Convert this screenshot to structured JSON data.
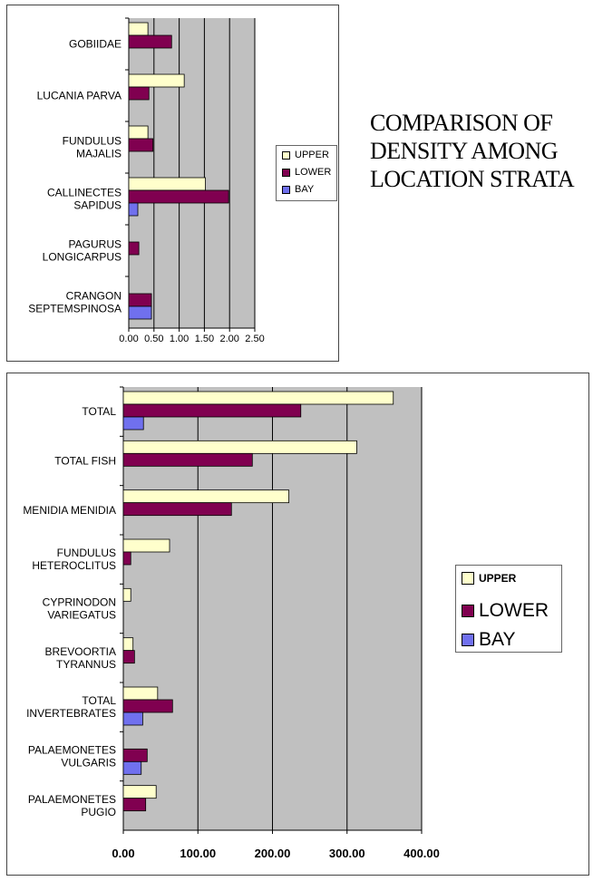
{
  "title_lines": [
    "COMPARISON OF",
    "DENSITY AMONG",
    "LOCATION STRATA"
  ],
  "colors": {
    "upper": "#FFFFCC",
    "lower": "#800050",
    "bay": "#7070EE",
    "plot_bg": "#C0C0C0",
    "grid": "#000000"
  },
  "chart_data": [
    {
      "type": "bar",
      "orientation": "horizontal",
      "categories": [
        "GOBIIDAE",
        "LUCANIA PARVA",
        "FUNDULUS MAJALIS",
        "CALLINECTES SAPIDUS",
        "PAGURUS LONGICARPUS",
        "CRANGON SEPTEMSPINOSA"
      ],
      "category_lines": [
        [
          "GOBIIDAE"
        ],
        [
          "LUCANIA PARVA"
        ],
        [
          "FUNDULUS",
          "MAJALIS"
        ],
        [
          "CALLINECTES",
          "SAPIDUS"
        ],
        [
          "PAGURUS",
          "LONGICARPUS"
        ],
        [
          "CRANGON",
          "SEPTEMSPINOSA"
        ]
      ],
      "series": [
        {
          "name": "UPPER",
          "values": [
            0.38,
            1.1,
            0.38,
            1.52,
            0,
            0
          ]
        },
        {
          "name": "LOWER",
          "values": [
            0.85,
            0.4,
            0.48,
            1.98,
            0.2,
            0.45
          ]
        },
        {
          "name": "BAY",
          "values": [
            0,
            0,
            0,
            0.18,
            0,
            0.45
          ]
        }
      ],
      "xlim": [
        0,
        2.5
      ],
      "ticks": [
        "0.00",
        "0.50",
        "1.00",
        "1.50",
        "2.00",
        "2.50"
      ],
      "tick_values": [
        0,
        0.5,
        1.0,
        1.5,
        2.0,
        2.5
      ],
      "grid": true,
      "legend": "right",
      "xlabel": "",
      "ylabel": ""
    },
    {
      "type": "bar",
      "orientation": "horizontal",
      "categories": [
        "TOTAL",
        "TOTAL FISH",
        "MENIDIA MENIDIA",
        "FUNDULUS HETEROCLITUS",
        "CYPRINODON VARIEGATUS",
        "BREVOORTIA TYRANNUS",
        "TOTAL INVERTEBRATES",
        "PALAEMONETES VULGARIS",
        "PALAEMONETES PUGIO"
      ],
      "category_lines": [
        [
          "TOTAL"
        ],
        [
          "TOTAL FISH"
        ],
        [
          "MENIDIA MENIDIA"
        ],
        [
          "FUNDULUS",
          "HETEROCLITUS"
        ],
        [
          "CYPRINODON",
          "VARIEGATUS"
        ],
        [
          "BREVOORTIA",
          "TYRANNUS"
        ],
        [
          "TOTAL",
          "INVERTEBRATES"
        ],
        [
          "PALAEMONETES",
          "VULGARIS"
        ],
        [
          "PALAEMONETES",
          "PUGIO"
        ]
      ],
      "series": [
        {
          "name": "UPPER",
          "values": [
            362,
            313,
            222,
            62,
            10,
            13,
            46,
            0,
            44
          ]
        },
        {
          "name": "LOWER",
          "values": [
            238,
            173,
            145,
            10,
            0,
            15,
            66,
            32,
            30
          ]
        },
        {
          "name": "BAY",
          "values": [
            27,
            0,
            0,
            0,
            0,
            0,
            26,
            24,
            0
          ]
        }
      ],
      "xlim": [
        0,
        400
      ],
      "ticks": [
        "0.00",
        "100.00",
        "200.00",
        "300.00",
        "400.00"
      ],
      "tick_values": [
        0,
        100,
        200,
        300,
        400
      ],
      "grid": true,
      "legend": "right",
      "xlabel": "",
      "ylabel": ""
    }
  ]
}
